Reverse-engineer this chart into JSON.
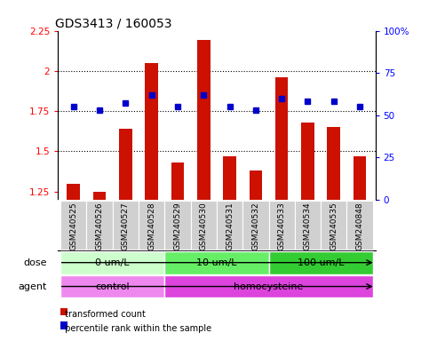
{
  "title": "GDS3413 / 160053",
  "samples": [
    "GSM240525",
    "GSM240526",
    "GSM240527",
    "GSM240528",
    "GSM240529",
    "GSM240530",
    "GSM240531",
    "GSM240532",
    "GSM240533",
    "GSM240534",
    "GSM240535",
    "GSM240848"
  ],
  "transformed_count": [
    1.3,
    1.25,
    1.64,
    2.05,
    1.43,
    2.19,
    1.47,
    1.38,
    1.96,
    1.68,
    1.65,
    1.47
  ],
  "percentile_rank": [
    55,
    53,
    57,
    62,
    55,
    62,
    55,
    53,
    60,
    58,
    58,
    55
  ],
  "bar_color": "#cc1100",
  "dot_color": "#0000cc",
  "ylim_left": [
    1.2,
    2.25
  ],
  "ylim_right": [
    0,
    100
  ],
  "yticks_left": [
    1.25,
    1.5,
    1.75,
    2.0,
    2.25
  ],
  "ytick_labels_left": [
    "1.25",
    "1.5",
    "1.75",
    "2",
    "2.25"
  ],
  "yticks_right": [
    0,
    25,
    50,
    75,
    100
  ],
  "ytick_labels_right": [
    "0",
    "25",
    "50",
    "75",
    "100%"
  ],
  "hlines": [
    1.5,
    1.75,
    2.0
  ],
  "dose_groups": [
    {
      "label": "0 um/L",
      "start": 0,
      "end": 3,
      "color": "#ccffcc"
    },
    {
      "label": "10 um/L",
      "start": 4,
      "end": 7,
      "color": "#66ee66"
    },
    {
      "label": "100 um/L",
      "start": 8,
      "end": 11,
      "color": "#33cc33"
    }
  ],
  "agent_groups": [
    {
      "label": "control",
      "start": 0,
      "end": 3,
      "color": "#ee88ee"
    },
    {
      "label": "homocysteine",
      "start": 4,
      "end": 11,
      "color": "#dd44dd"
    }
  ],
  "dose_label": "dose",
  "agent_label": "agent",
  "legend_bar_label": "transformed count",
  "legend_dot_label": "percentile rank within the sample",
  "sample_bg_color": "#d0d0d0",
  "title_fontsize": 10,
  "tick_fontsize": 7.5,
  "sample_fontsize": 6.5,
  "row_fontsize": 8
}
